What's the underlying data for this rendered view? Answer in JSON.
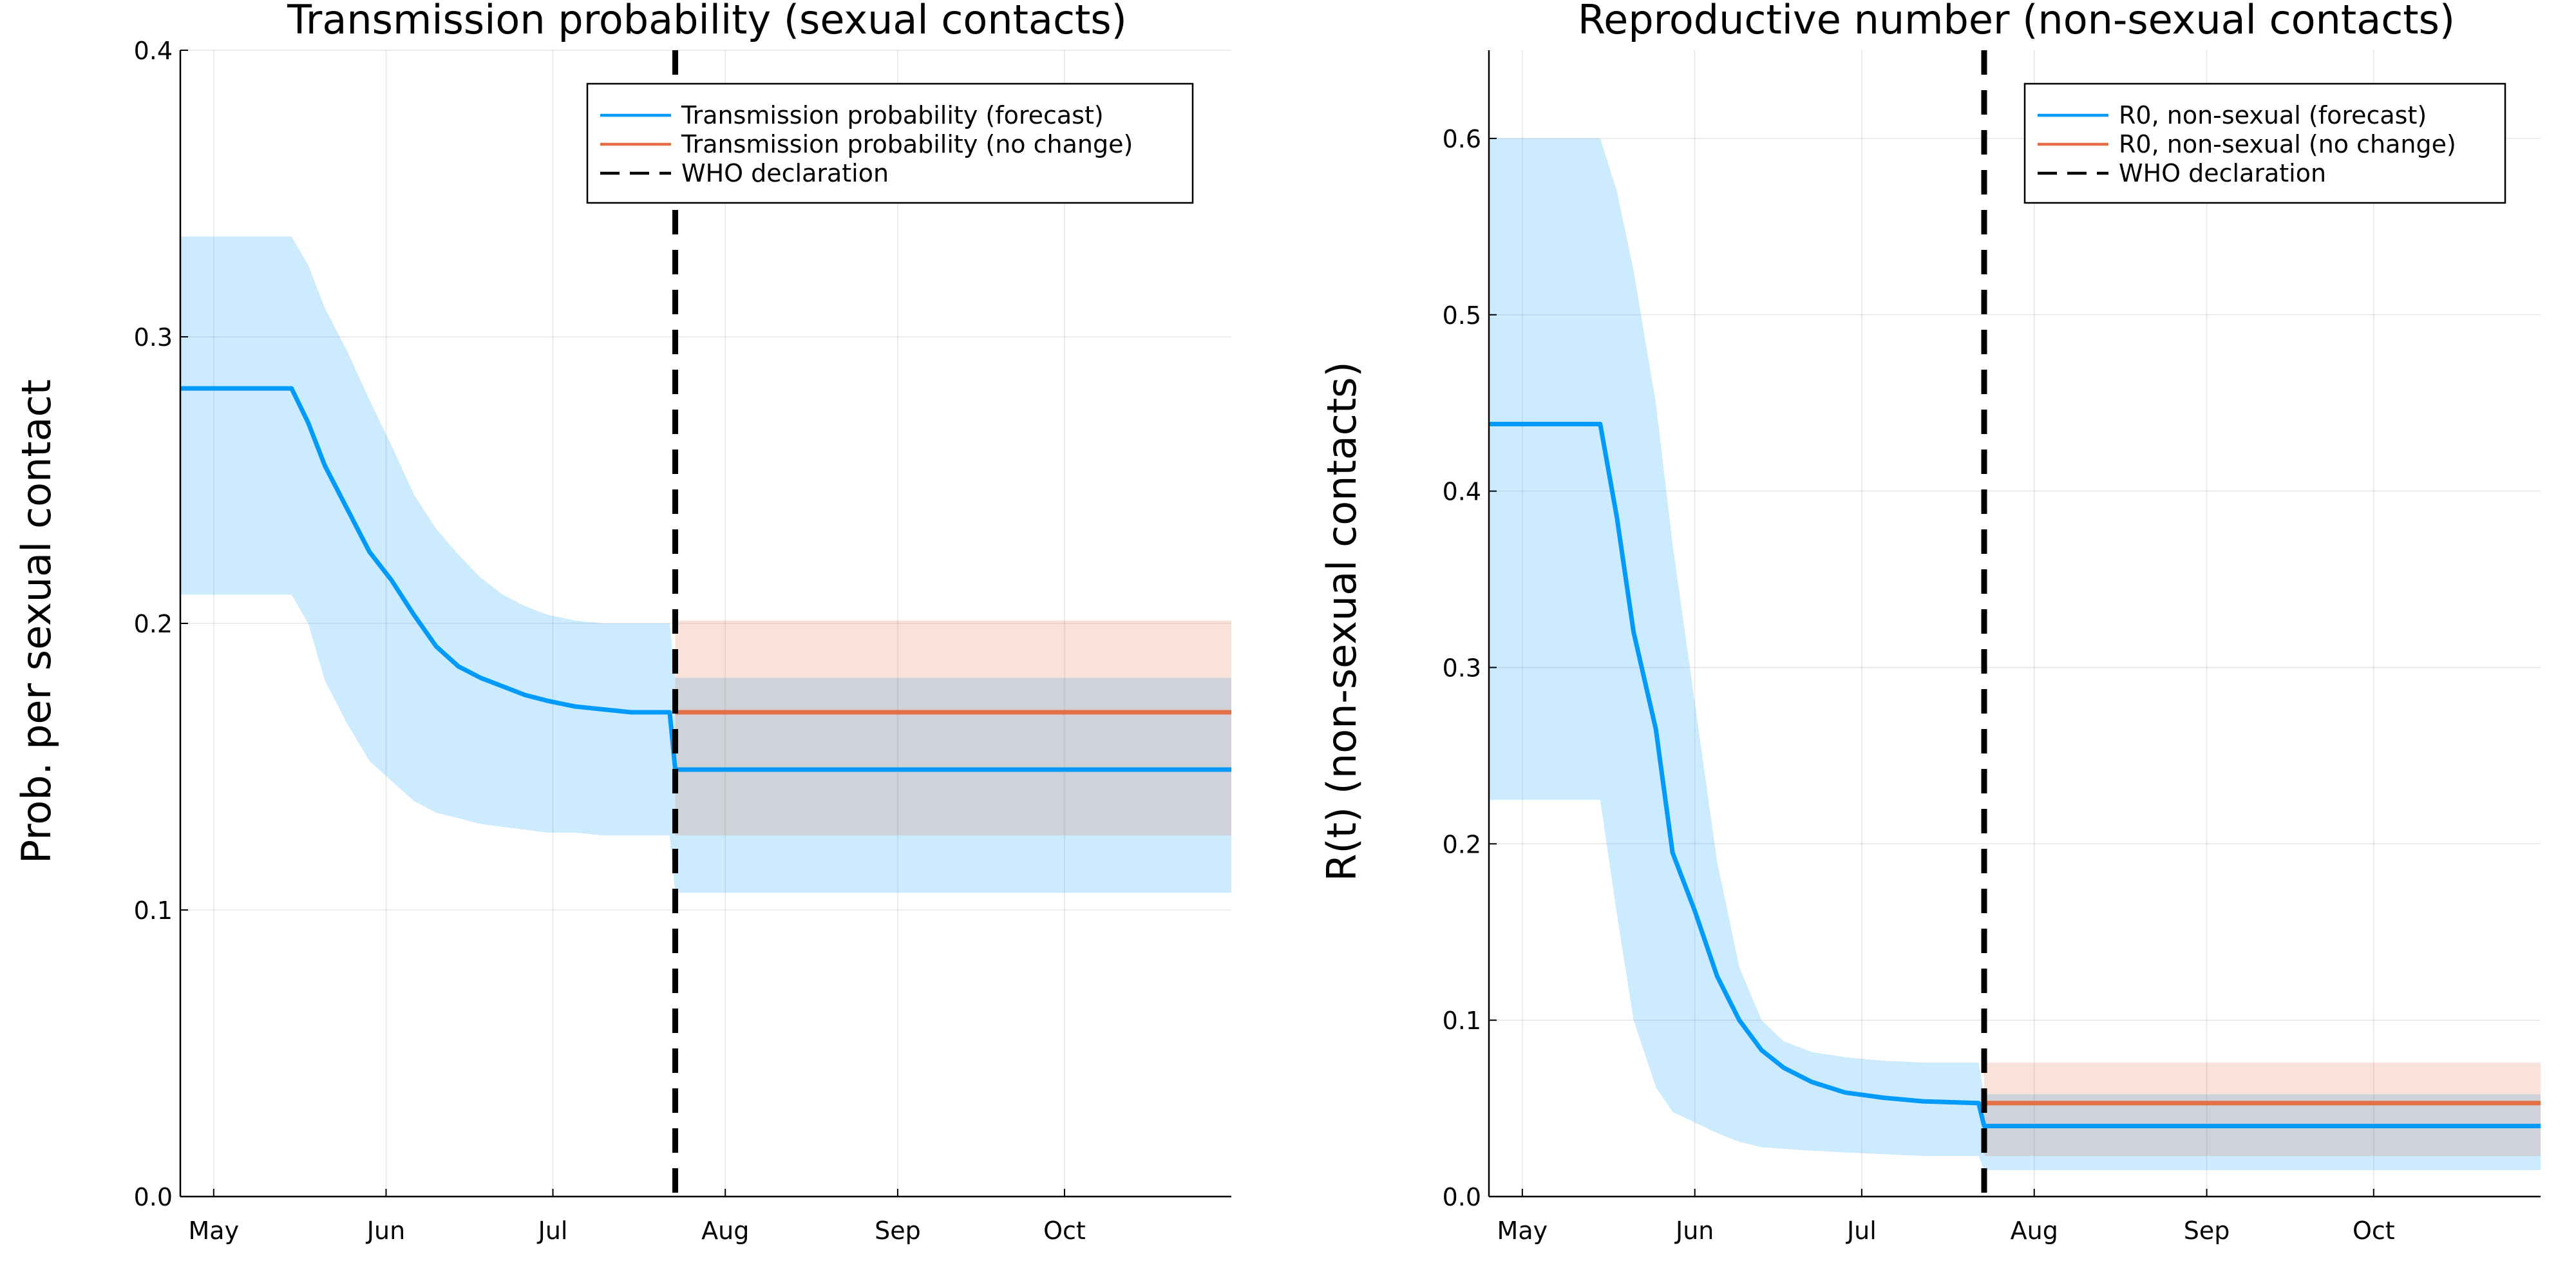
{
  "chart_data": [
    {
      "type": "line",
      "title": "Transmission probability (sexual contacts)",
      "xlabel": "",
      "ylabel": "Prob. per sexual contact",
      "x_tick_labels": [
        "May",
        "Jun",
        "Jul",
        "Aug",
        "Sep",
        "Oct"
      ],
      "x_tick_dates": [
        "2022-05-01",
        "2022-06-01",
        "2022-07-01",
        "2022-08-01",
        "2022-09-01",
        "2022-10-01"
      ],
      "xlim": [
        "2022-04-25",
        "2022-10-31"
      ],
      "ylim": [
        0,
        0.4
      ],
      "y_ticks": [
        0.0,
        0.1,
        0.2,
        0.3,
        0.4
      ],
      "y_tick_labels": [
        "0.0",
        "0.1",
        "0.2",
        "0.3",
        "0.4"
      ],
      "grid": true,
      "legend_position": "top-right",
      "legend": [
        "Transmission probability (forecast)",
        "Transmission probability (no change)",
        "WHO declaration"
      ],
      "declaration_date": "2022-07-23",
      "series": [
        {
          "name": "Transmission probability (forecast)",
          "color": "#009AFA",
          "x": [
            "2022-04-25",
            "2022-05-15",
            "2022-05-18",
            "2022-05-21",
            "2022-05-25",
            "2022-05-29",
            "2022-06-02",
            "2022-06-06",
            "2022-06-10",
            "2022-06-14",
            "2022-06-18",
            "2022-06-22",
            "2022-06-26",
            "2022-06-30",
            "2022-07-05",
            "2022-07-10",
            "2022-07-15",
            "2022-07-22",
            "2022-07-23",
            "2022-10-31"
          ],
          "y": [
            0.282,
            0.282,
            0.27,
            0.255,
            0.24,
            0.225,
            0.215,
            0.203,
            0.192,
            0.185,
            0.181,
            0.178,
            0.175,
            0.173,
            0.171,
            0.17,
            0.169,
            0.169,
            0.149,
            0.149
          ],
          "band_lower": [
            0.21,
            0.21,
            0.2,
            0.18,
            0.165,
            0.152,
            0.145,
            0.138,
            0.134,
            0.132,
            0.13,
            0.129,
            0.128,
            0.127,
            0.127,
            0.126,
            0.126,
            0.126,
            0.106,
            0.106
          ],
          "band_upper": [
            0.335,
            0.335,
            0.325,
            0.31,
            0.295,
            0.278,
            0.262,
            0.245,
            0.233,
            0.224,
            0.216,
            0.21,
            0.206,
            0.203,
            0.201,
            0.2,
            0.2,
            0.2,
            0.181,
            0.181
          ]
        },
        {
          "name": "Transmission probability (no change)",
          "color": "#E26F46",
          "x": [
            "2022-07-23",
            "2022-10-31"
          ],
          "y": [
            0.169,
            0.169
          ],
          "band_lower": [
            0.126,
            0.126
          ],
          "band_upper": [
            0.201,
            0.201
          ]
        },
        {
          "name": "WHO declaration",
          "color": "#000000",
          "style": "dashed-vertical",
          "x": [
            "2022-07-23"
          ]
        }
      ]
    },
    {
      "type": "line",
      "title": "Reproductive number (non-sexual contacts)",
      "xlabel": "",
      "ylabel": "R(t) (non-sexual contacts)",
      "x_tick_labels": [
        "May",
        "Jun",
        "Jul",
        "Aug",
        "Sep",
        "Oct"
      ],
      "x_tick_dates": [
        "2022-05-01",
        "2022-06-01",
        "2022-07-01",
        "2022-08-01",
        "2022-09-01",
        "2022-10-01"
      ],
      "xlim": [
        "2022-04-25",
        "2022-10-31"
      ],
      "ylim": [
        0,
        0.65
      ],
      "y_ticks": [
        0.0,
        0.1,
        0.2,
        0.3,
        0.4,
        0.5,
        0.6
      ],
      "y_tick_labels": [
        "0.0",
        "0.1",
        "0.2",
        "0.3",
        "0.4",
        "0.5",
        "0.6"
      ],
      "grid": true,
      "legend_position": "top-right",
      "legend": [
        "R0, non-sexual (forecast)",
        "R0, non-sexual (no change)",
        "WHO declaration"
      ],
      "declaration_date": "2022-07-23",
      "series": [
        {
          "name": "R0, non-sexual (forecast)",
          "color": "#009AFA",
          "x": [
            "2022-04-25",
            "2022-05-15",
            "2022-05-18",
            "2022-05-21",
            "2022-05-25",
            "2022-05-28",
            "2022-06-01",
            "2022-06-05",
            "2022-06-09",
            "2022-06-13",
            "2022-06-17",
            "2022-06-22",
            "2022-06-28",
            "2022-07-05",
            "2022-07-12",
            "2022-07-22",
            "2022-07-23",
            "2022-10-31"
          ],
          "y": [
            0.438,
            0.438,
            0.385,
            0.32,
            0.265,
            0.195,
            0.162,
            0.125,
            0.1,
            0.083,
            0.073,
            0.065,
            0.059,
            0.056,
            0.054,
            0.053,
            0.04,
            0.04
          ],
          "band_lower": [
            0.225,
            0.225,
            0.16,
            0.1,
            0.062,
            0.048,
            0.042,
            0.036,
            0.031,
            0.028,
            0.027,
            0.026,
            0.025,
            0.024,
            0.023,
            0.023,
            0.015,
            0.015
          ],
          "band_upper": [
            0.6,
            0.6,
            0.57,
            0.525,
            0.45,
            0.37,
            0.28,
            0.19,
            0.13,
            0.1,
            0.088,
            0.082,
            0.079,
            0.077,
            0.076,
            0.076,
            0.058,
            0.058
          ]
        },
        {
          "name": "R0, non-sexual (no change)",
          "color": "#E26F46",
          "x": [
            "2022-07-23",
            "2022-10-31"
          ],
          "y": [
            0.053,
            0.053
          ],
          "band_lower": [
            0.023,
            0.023
          ],
          "band_upper": [
            0.076,
            0.076
          ]
        },
        {
          "name": "WHO declaration",
          "color": "#000000",
          "style": "dashed-vertical",
          "x": [
            "2022-07-23"
          ]
        }
      ]
    }
  ]
}
